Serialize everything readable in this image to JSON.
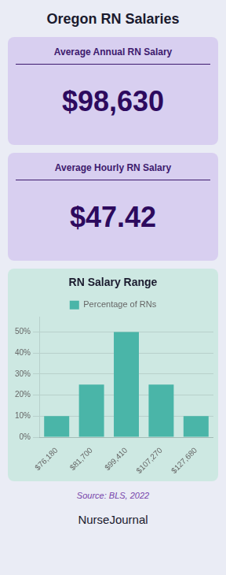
{
  "chart_data": {
    "type": "bar",
    "title": "Oregon RN Salaries",
    "subtitle": "RN Salary Range",
    "annotations": [
      "Average Annual RN Salary",
      "$98,630",
      "Average Hourly RN Salary",
      "$47.42",
      "Source: BLS, 2022",
      "NurseJournal"
    ],
    "categories": [
      "$76,180",
      "$81,700",
      "$99,410",
      "$107,270",
      "$127,680"
    ],
    "series": [
      {
        "name": "Percentage of RNs",
        "color": "#4ab5a8",
        "values": [
          10,
          25,
          50,
          25,
          10
        ]
      }
    ],
    "ylim": [
      0,
      57
    ],
    "yticks": [
      {
        "value": 0,
        "label": "0%"
      },
      {
        "value": 10,
        "label": "10%"
      },
      {
        "value": 20,
        "label": "20%"
      },
      {
        "value": 30,
        "label": "30%"
      },
      {
        "value": 40,
        "label": "40%"
      },
      {
        "value": 50,
        "label": "50%"
      }
    ],
    "grid": true,
    "legend": "top"
  }
}
